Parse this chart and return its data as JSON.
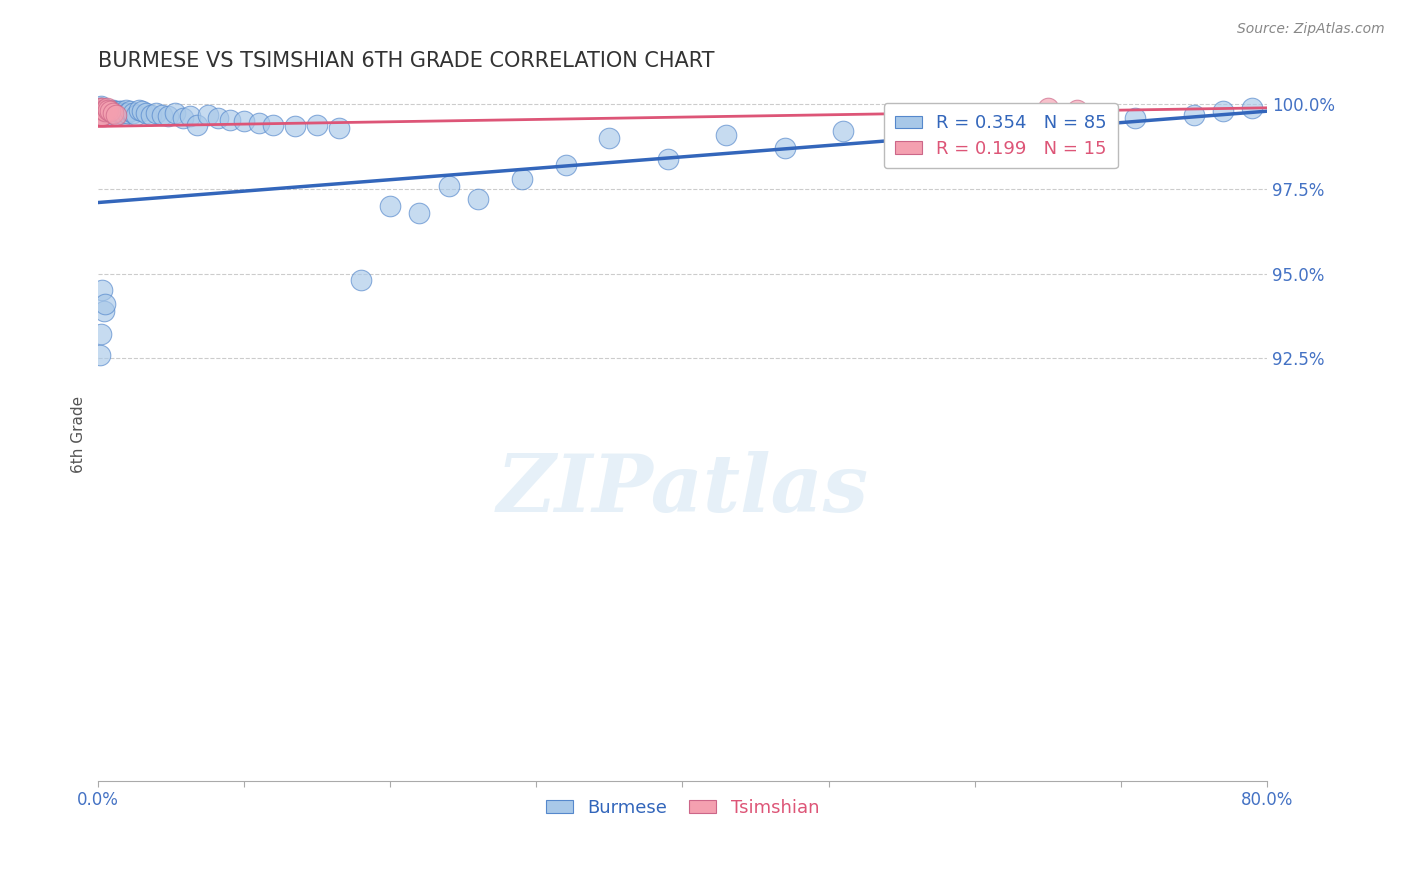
{
  "title": "BURMESE VS TSIMSHIAN 6TH GRADE CORRELATION CHART",
  "source": "Source: ZipAtlas.com",
  "ylabel": "6th Grade",
  "xlim": [
    0.0,
    0.8
  ],
  "ylim": [
    0.8,
    1.005
  ],
  "xtick_positions": [
    0.0,
    0.1,
    0.2,
    0.3,
    0.4,
    0.5,
    0.6,
    0.7,
    0.8
  ],
  "xticklabels": [
    "0.0%",
    "",
    "",
    "",
    "",
    "",
    "",
    "",
    "80.0%"
  ],
  "ytick_positions": [
    0.925,
    0.95,
    0.975,
    1.0
  ],
  "yticklabels": [
    "92.5%",
    "95.0%",
    "97.5%",
    "100.0%"
  ],
  "R_blue": 0.354,
  "N_blue": 85,
  "R_pink": 0.199,
  "N_pink": 15,
  "blue_color": "#a8c8e8",
  "pink_color": "#f4a0b0",
  "blue_edge_color": "#5588cc",
  "pink_edge_color": "#cc6688",
  "blue_line_color": "#3366bb",
  "pink_line_color": "#dd5577",
  "grid_color": "#cccccc",
  "title_color": "#333333",
  "axis_label_color": "#4472c4",
  "watermark": "ZIPatlas",
  "blue_x": [
    0.001,
    0.001,
    0.001,
    0.002,
    0.002,
    0.002,
    0.002,
    0.003,
    0.003,
    0.003,
    0.003,
    0.004,
    0.004,
    0.004,
    0.005,
    0.005,
    0.005,
    0.006,
    0.006,
    0.007,
    0.007,
    0.008,
    0.008,
    0.009,
    0.009,
    0.01,
    0.01,
    0.011,
    0.012,
    0.013,
    0.014,
    0.015,
    0.016,
    0.017,
    0.018,
    0.019,
    0.02,
    0.022,
    0.024,
    0.026,
    0.028,
    0.03,
    0.033,
    0.036,
    0.04,
    0.044,
    0.048,
    0.053,
    0.058,
    0.063,
    0.068,
    0.075,
    0.082,
    0.09,
    0.1,
    0.11,
    0.12,
    0.135,
    0.15,
    0.165,
    0.18,
    0.2,
    0.22,
    0.24,
    0.26,
    0.29,
    0.32,
    0.35,
    0.39,
    0.43,
    0.47,
    0.51,
    0.55,
    0.59,
    0.63,
    0.67,
    0.71,
    0.75,
    0.77,
    0.79,
    0.001,
    0.002,
    0.003,
    0.004,
    0.005
  ],
  "blue_y": [
    0.999,
    0.9985,
    0.9975,
    0.999,
    0.998,
    0.997,
    0.9995,
    0.9985,
    0.9975,
    0.999,
    0.998,
    0.9985,
    0.9975,
    0.9965,
    0.9985,
    0.998,
    0.997,
    0.9975,
    0.9985,
    0.998,
    0.9975,
    0.997,
    0.9985,
    0.998,
    0.997,
    0.9975,
    0.9985,
    0.998,
    0.9975,
    0.997,
    0.998,
    0.9975,
    0.998,
    0.9975,
    0.997,
    0.9985,
    0.9975,
    0.998,
    0.9975,
    0.997,
    0.9985,
    0.998,
    0.9975,
    0.997,
    0.9975,
    0.997,
    0.9965,
    0.9975,
    0.996,
    0.9965,
    0.994,
    0.997,
    0.996,
    0.9955,
    0.995,
    0.9945,
    0.994,
    0.9935,
    0.994,
    0.993,
    0.948,
    0.97,
    0.968,
    0.976,
    0.972,
    0.978,
    0.982,
    0.99,
    0.984,
    0.991,
    0.987,
    0.992,
    0.993,
    0.994,
    0.996,
    0.995,
    0.996,
    0.997,
    0.998,
    0.999,
    0.926,
    0.932,
    0.945,
    0.939,
    0.941
  ],
  "pink_x": [
    0.001,
    0.001,
    0.002,
    0.002,
    0.003,
    0.003,
    0.004,
    0.005,
    0.006,
    0.007,
    0.008,
    0.01,
    0.012,
    0.65,
    0.67
  ],
  "pink_y": [
    0.999,
    0.997,
    0.9985,
    0.9965,
    0.999,
    0.997,
    0.9985,
    0.998,
    0.999,
    0.9985,
    0.998,
    0.9975,
    0.997,
    0.999,
    0.9985
  ],
  "blue_trendline_x": [
    0.0,
    0.8
  ],
  "blue_trendline_y": [
    0.971,
    0.998
  ],
  "pink_trendline_x": [
    0.0,
    0.8
  ],
  "pink_trendline_y": [
    0.9935,
    0.999
  ]
}
